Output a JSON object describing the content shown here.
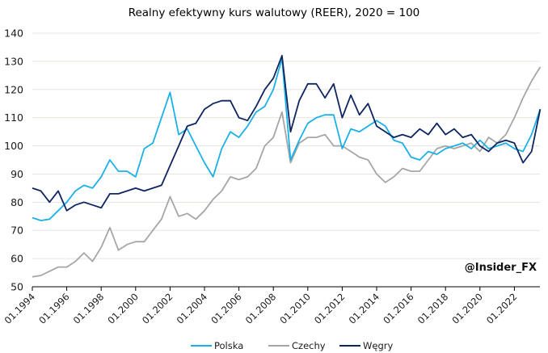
{
  "chart_data": {
    "type": "line",
    "title": "Realny efektywny kurs walutowy (REER), 2020 = 100",
    "xlabel": "",
    "ylabel": "",
    "ylim": [
      50,
      140
    ],
    "yticks": [
      50,
      60,
      70,
      80,
      90,
      100,
      110,
      120,
      130,
      140
    ],
    "xlim": [
      1994.0,
      2023.5
    ],
    "xticks": [
      "01.1994",
      "01.1996",
      "01.1998",
      "01.2000",
      "01.2002",
      "01.2004",
      "01.2006",
      "01.2008",
      "01.2010",
      "01.2012",
      "01.2014",
      "01.2016",
      "01.2018",
      "01.2020",
      "01.2022"
    ],
    "grid": true,
    "legend_position": "bottom",
    "watermark": "@Insider_FX",
    "x": [
      1994.0,
      1994.5,
      1995.0,
      1995.5,
      1996.0,
      1996.5,
      1997.0,
      1997.5,
      1998.0,
      1998.5,
      1999.0,
      1999.5,
      2000.0,
      2000.5,
      2001.0,
      2001.5,
      2002.0,
      2002.5,
      2003.0,
      2003.5,
      2004.0,
      2004.5,
      2005.0,
      2005.5,
      2006.0,
      2006.5,
      2007.0,
      2007.5,
      2008.0,
      2008.5,
      2009.0,
      2009.5,
      2010.0,
      2010.5,
      2011.0,
      2011.5,
      2012.0,
      2012.5,
      2013.0,
      2013.5,
      2014.0,
      2014.5,
      2015.0,
      2015.5,
      2016.0,
      2016.5,
      2017.0,
      2017.5,
      2018.0,
      2018.5,
      2019.0,
      2019.5,
      2020.0,
      2020.5,
      2021.0,
      2021.5,
      2022.0,
      2022.5,
      2023.0,
      2023.5
    ],
    "series": [
      {
        "name": "Polska",
        "color": "#1ab0e8",
        "values": [
          74.5,
          73.5,
          74,
          77,
          80,
          84,
          86,
          85,
          89,
          95,
          91,
          91,
          89,
          99,
          101,
          110,
          119,
          104,
          106,
          100,
          94,
          89,
          99,
          105,
          103,
          107,
          112,
          114,
          120,
          131,
          95,
          102,
          108,
          110,
          111,
          111,
          99,
          106,
          105,
          107,
          109,
          107,
          102,
          101,
          96,
          95,
          98,
          97,
          99,
          100,
          101,
          99,
          102,
          99,
          100,
          101,
          99,
          98,
          104,
          113
        ]
      },
      {
        "name": "Czechy",
        "color": "#a6a6a6",
        "values": [
          53.5,
          54,
          55.5,
          57,
          57,
          59,
          62,
          59,
          64,
          71,
          63,
          65,
          66,
          66,
          70,
          74,
          82,
          75,
          76,
          74,
          77,
          81,
          84,
          89,
          88,
          89,
          92,
          100,
          103,
          112,
          94,
          101,
          103,
          103,
          104,
          100,
          100,
          98,
          96,
          95,
          90,
          87,
          89,
          92,
          91,
          91,
          95,
          99,
          100,
          99,
          100,
          101,
          98,
          103,
          101,
          104,
          110,
          117,
          123,
          128
        ]
      },
      {
        "name": "Węgry",
        "color": "#0d2561",
        "values": [
          85,
          84,
          80,
          84,
          77,
          79,
          80,
          79,
          78,
          83,
          83,
          84,
          85,
          84,
          85,
          86,
          93,
          100,
          107,
          108,
          113,
          115,
          116,
          116,
          110,
          109,
          114,
          120,
          124,
          132,
          105,
          116,
          122,
          122,
          117,
          122,
          110,
          118,
          111,
          115,
          107,
          105,
          103,
          104,
          103,
          106,
          104,
          108,
          104,
          106,
          103,
          104,
          100,
          98,
          101,
          102,
          101,
          94,
          98,
          113
        ]
      }
    ]
  }
}
